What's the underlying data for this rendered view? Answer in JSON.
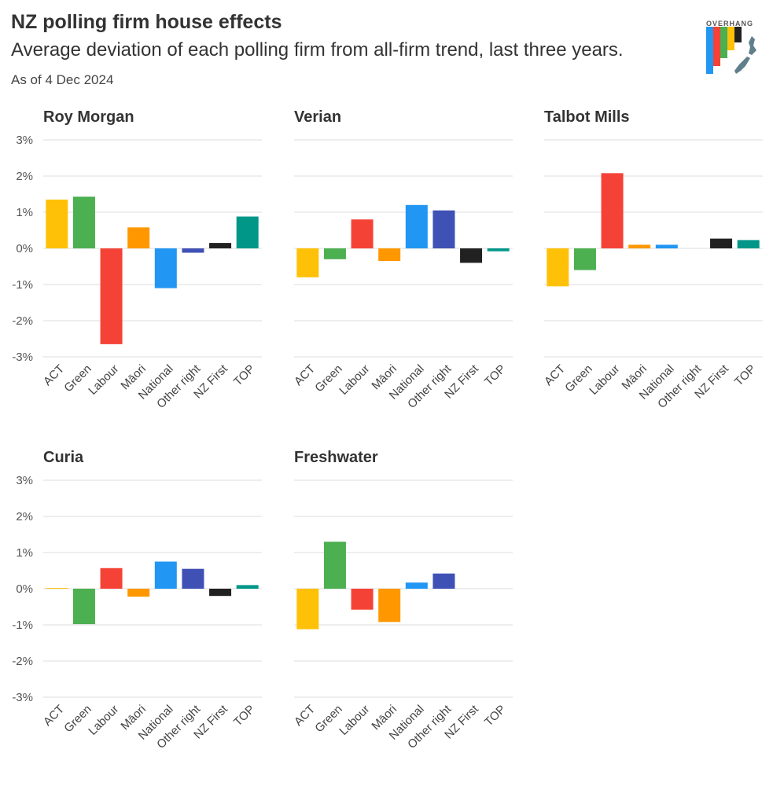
{
  "header": {
    "title": "NZ polling firm house effects",
    "subtitle": "Average deviation of each polling firm from all-firm trend, last three years.",
    "date": "As of 4 Dec 2024",
    "logo_text": "OVERHANG"
  },
  "chart_data": {
    "type": "bar",
    "ylim": [
      -3,
      3
    ],
    "yticks": [
      3,
      2,
      1,
      0,
      -1,
      -2,
      -3
    ],
    "ytick_labels": [
      "3%",
      "2%",
      "1%",
      "0%",
      "-1%",
      "-2%",
      "-3%"
    ],
    "categories": [
      "ACT",
      "Green",
      "Labour",
      "Māori",
      "National",
      "Other right",
      "NZ First",
      "TOP"
    ],
    "colors": {
      "ACT": "#FFC107",
      "Green": "#4CAF50",
      "Labour": "#F44336",
      "Māori": "#FF9800",
      "National": "#2196F3",
      "Other right": "#3F51B5",
      "NZ First": "#212121",
      "TOP": "#009688"
    },
    "panels": [
      {
        "title": "Roy Morgan",
        "values": [
          1.35,
          1.43,
          -2.65,
          0.58,
          -1.1,
          -0.12,
          0.15,
          0.88
        ]
      },
      {
        "title": "Verian",
        "values": [
          -0.8,
          -0.3,
          0.8,
          -0.35,
          1.2,
          1.05,
          -0.4,
          -0.08
        ]
      },
      {
        "title": "Talbot Mills",
        "values": [
          -1.05,
          -0.6,
          2.08,
          0.1,
          0.1,
          0.0,
          0.27,
          0.23
        ]
      },
      {
        "title": "Curia",
        "values": [
          0.02,
          -0.98,
          0.57,
          -0.22,
          0.75,
          0.55,
          -0.2,
          0.1
        ]
      },
      {
        "title": "Freshwater",
        "values": [
          -1.12,
          1.3,
          -0.58,
          -0.92,
          0.17,
          0.42,
          0.0,
          0.0
        ]
      }
    ]
  }
}
